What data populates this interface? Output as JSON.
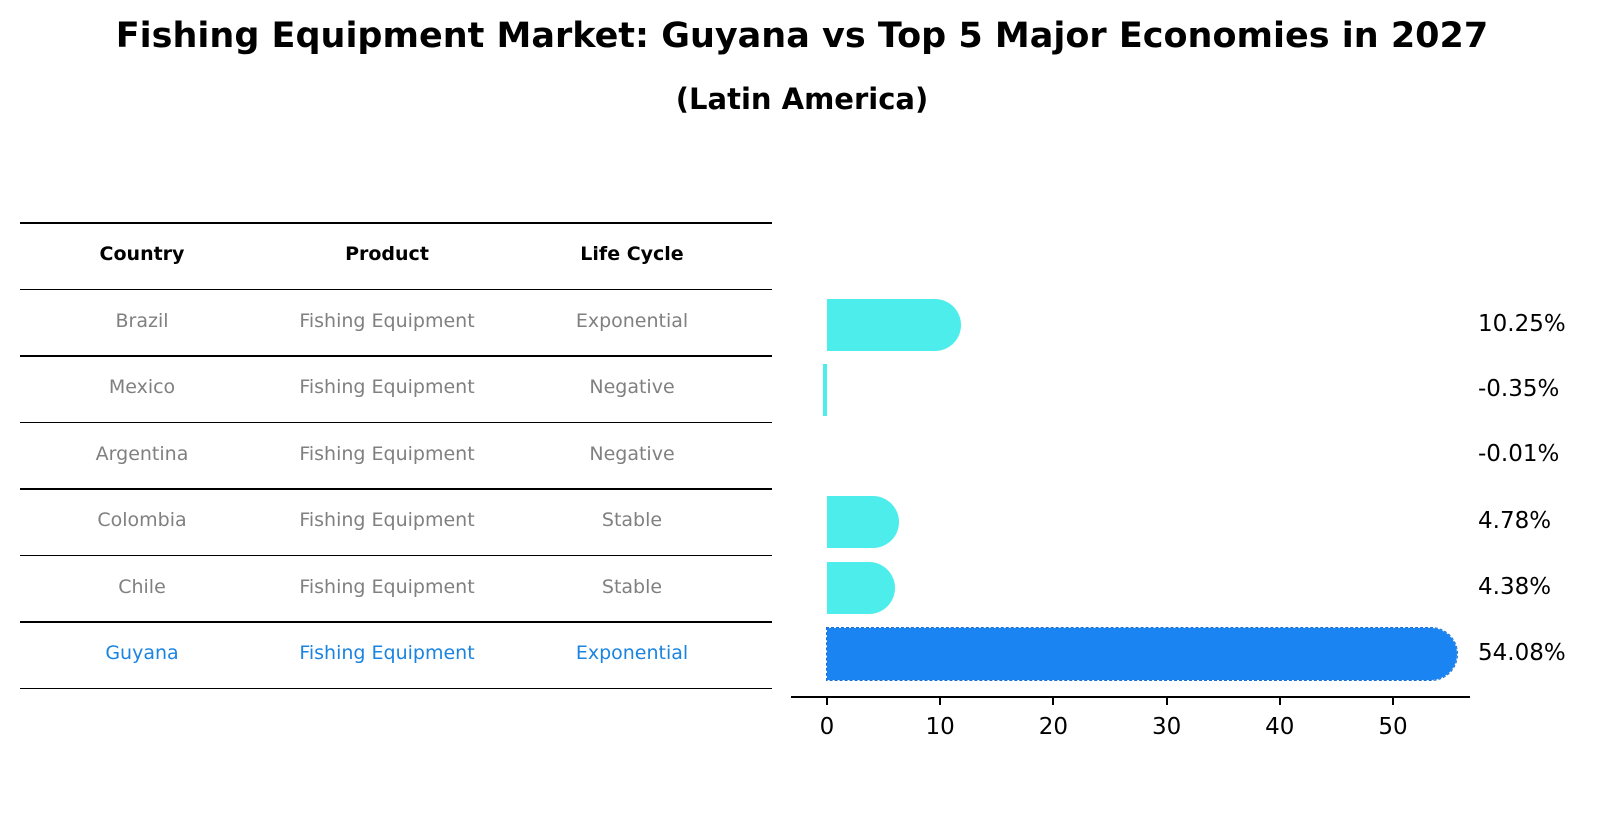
{
  "title": "Fishing Equipment Market: Guyana vs Top 5 Major Economies in 2027",
  "subtitle": "(Latin America)",
  "table": {
    "headers": [
      "Country",
      "Product",
      "Life Cycle"
    ],
    "rows": [
      {
        "country": "Brazil",
        "product": "Fishing Equipment",
        "life_cycle": "Exponential"
      },
      {
        "country": "Mexico",
        "product": "Fishing Equipment",
        "life_cycle": "Negative"
      },
      {
        "country": "Argentina",
        "product": "Fishing Equipment",
        "life_cycle": "Negative"
      },
      {
        "country": "Colombia",
        "product": "Fishing Equipment",
        "life_cycle": "Stable"
      },
      {
        "country": "Chile",
        "product": "Fishing Equipment",
        "life_cycle": "Stable"
      },
      {
        "country": "Guyana",
        "product": "Fishing Equipment",
        "life_cycle": "Exponential"
      }
    ]
  },
  "colors": {
    "others": "#4dedeb",
    "highlight": "#1a84f3",
    "table_text": "#808080",
    "table_highlight": "#1a84e0"
  },
  "chart_data": {
    "type": "bar",
    "orientation": "horizontal",
    "title": "Fishing Equipment Market: Guyana vs Top 5 Major Economies in 2027",
    "subtitle": "(Latin America)",
    "categories": [
      "Brazil",
      "Mexico",
      "Argentina",
      "Colombia",
      "Chile",
      "Guyana"
    ],
    "values": [
      10.25,
      -0.35,
      -0.01,
      4.78,
      4.38,
      54.08
    ],
    "value_labels": [
      "10.25%",
      "-0.35%",
      "-0.01%",
      "4.78%",
      "4.38%",
      "54.08%"
    ],
    "highlight": "Guyana",
    "xlabel": "",
    "ylabel": "",
    "xticks": [
      "0",
      "10",
      "20",
      "30",
      "40",
      "50"
    ],
    "xlim": [
      -3,
      57
    ],
    "grid": false,
    "legend": null
  }
}
